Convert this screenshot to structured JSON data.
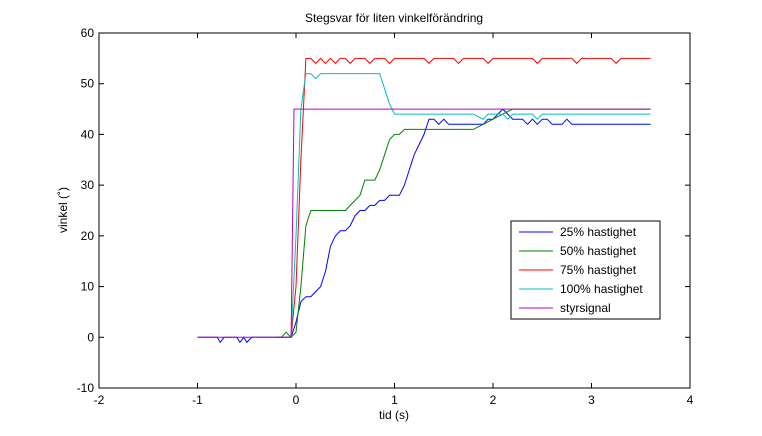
{
  "chart_data": {
    "type": "line",
    "title": "Stegsvar för liten vinkelförändring",
    "xlabel": "tid (s)",
    "ylabel": "vinkel (˚)",
    "xlim": [
      -2,
      4
    ],
    "ylim": [
      -10,
      60
    ],
    "xticks": [
      "-2",
      "-1",
      "0",
      "1",
      "2",
      "3",
      "4"
    ],
    "yticks": [
      "-10",
      "0",
      "10",
      "20",
      "30",
      "40",
      "50",
      "60"
    ],
    "grid": false,
    "legend_position": "lower-right",
    "series": [
      {
        "name": "25% hastighet",
        "color": "#0000ff",
        "points": [
          [
            -1.0,
            0
          ],
          [
            -0.8,
            0
          ],
          [
            -0.77,
            -1
          ],
          [
            -0.73,
            0
          ],
          [
            -0.6,
            0
          ],
          [
            -0.57,
            -1
          ],
          [
            -0.53,
            0
          ],
          [
            -0.5,
            -1
          ],
          [
            -0.45,
            0
          ],
          [
            -0.2,
            0
          ],
          [
            -0.05,
            0
          ],
          [
            0.0,
            3
          ],
          [
            0.05,
            7
          ],
          [
            0.1,
            8
          ],
          [
            0.15,
            8
          ],
          [
            0.2,
            9
          ],
          [
            0.25,
            10
          ],
          [
            0.3,
            13
          ],
          [
            0.35,
            18
          ],
          [
            0.4,
            20
          ],
          [
            0.45,
            21
          ],
          [
            0.5,
            21
          ],
          [
            0.55,
            22
          ],
          [
            0.6,
            24
          ],
          [
            0.65,
            25
          ],
          [
            0.7,
            25
          ],
          [
            0.75,
            26
          ],
          [
            0.8,
            26
          ],
          [
            0.85,
            27
          ],
          [
            0.9,
            27
          ],
          [
            0.95,
            28
          ],
          [
            1.05,
            28
          ],
          [
            1.1,
            30
          ],
          [
            1.15,
            33
          ],
          [
            1.2,
            36
          ],
          [
            1.25,
            38
          ],
          [
            1.3,
            40
          ],
          [
            1.35,
            43
          ],
          [
            1.4,
            43
          ],
          [
            1.45,
            42
          ],
          [
            1.5,
            43
          ],
          [
            1.55,
            42
          ],
          [
            1.9,
            42
          ],
          [
            1.95,
            43
          ],
          [
            2.0,
            43
          ],
          [
            2.05,
            44
          ],
          [
            2.1,
            45
          ],
          [
            2.15,
            44
          ],
          [
            2.2,
            43
          ],
          [
            2.3,
            43
          ],
          [
            2.35,
            42
          ],
          [
            2.4,
            43
          ],
          [
            2.45,
            42
          ],
          [
            2.5,
            43
          ],
          [
            2.55,
            43
          ],
          [
            2.6,
            42
          ],
          [
            2.7,
            42
          ],
          [
            2.75,
            43
          ],
          [
            2.8,
            42
          ],
          [
            3.0,
            42
          ],
          [
            3.6,
            42
          ]
        ]
      },
      {
        "name": "50% hastighet",
        "color": "#008000",
        "points": [
          [
            -0.2,
            0
          ],
          [
            -0.15,
            0
          ],
          [
            -0.1,
            1
          ],
          [
            -0.05,
            0
          ],
          [
            0.0,
            1
          ],
          [
            0.05,
            10
          ],
          [
            0.1,
            22
          ],
          [
            0.15,
            25
          ],
          [
            0.2,
            25
          ],
          [
            0.5,
            25
          ],
          [
            0.55,
            26
          ],
          [
            0.6,
            27
          ],
          [
            0.65,
            28
          ],
          [
            0.7,
            31
          ],
          [
            0.8,
            31
          ],
          [
            0.85,
            33
          ],
          [
            0.9,
            36
          ],
          [
            0.95,
            39
          ],
          [
            1.0,
            40
          ],
          [
            1.05,
            40
          ],
          [
            1.1,
            41
          ],
          [
            1.5,
            41
          ],
          [
            1.6,
            41
          ],
          [
            1.7,
            41
          ],
          [
            1.8,
            41
          ],
          [
            1.9,
            42
          ],
          [
            2.0,
            43
          ],
          [
            2.1,
            44
          ],
          [
            2.2,
            45
          ],
          [
            2.3,
            45
          ],
          [
            3.6,
            45
          ]
        ]
      },
      {
        "name": "75% hastighet",
        "color": "#ff0000",
        "points": [
          [
            -0.1,
            0
          ],
          [
            -0.05,
            0
          ],
          [
            0.0,
            10
          ],
          [
            0.05,
            35
          ],
          [
            0.1,
            55
          ],
          [
            0.15,
            55
          ],
          [
            0.2,
            54
          ],
          [
            0.25,
            55
          ],
          [
            0.3,
            54
          ],
          [
            0.35,
            55
          ],
          [
            0.4,
            54
          ],
          [
            0.45,
            55
          ],
          [
            0.5,
            55
          ],
          [
            0.55,
            54
          ],
          [
            0.6,
            55
          ],
          [
            0.7,
            55
          ],
          [
            0.75,
            54
          ],
          [
            0.8,
            55
          ],
          [
            0.9,
            55
          ],
          [
            0.95,
            54
          ],
          [
            1.0,
            55
          ],
          [
            1.3,
            55
          ],
          [
            1.35,
            54
          ],
          [
            1.4,
            55
          ],
          [
            1.6,
            55
          ],
          [
            1.65,
            54
          ],
          [
            1.7,
            55
          ],
          [
            1.9,
            55
          ],
          [
            1.95,
            54
          ],
          [
            2.0,
            55
          ],
          [
            2.4,
            55
          ],
          [
            2.45,
            54
          ],
          [
            2.5,
            55
          ],
          [
            2.8,
            55
          ],
          [
            2.85,
            54
          ],
          [
            2.9,
            55
          ],
          [
            3.2,
            55
          ],
          [
            3.25,
            54
          ],
          [
            3.3,
            55
          ],
          [
            3.6,
            55
          ]
        ]
      },
      {
        "name": "100% hastighet",
        "color": "#00c0c0",
        "points": [
          [
            -0.1,
            0
          ],
          [
            -0.05,
            0
          ],
          [
            0.0,
            20
          ],
          [
            0.05,
            45
          ],
          [
            0.1,
            52
          ],
          [
            0.15,
            52
          ],
          [
            0.2,
            51
          ],
          [
            0.25,
            52
          ],
          [
            0.3,
            52
          ],
          [
            0.5,
            52
          ],
          [
            0.7,
            52
          ],
          [
            0.85,
            52
          ],
          [
            0.9,
            49
          ],
          [
            0.95,
            46
          ],
          [
            1.0,
            44
          ],
          [
            1.1,
            44
          ],
          [
            1.5,
            44
          ],
          [
            1.8,
            44
          ],
          [
            1.9,
            43
          ],
          [
            1.95,
            44
          ],
          [
            2.1,
            44
          ],
          [
            2.15,
            43
          ],
          [
            2.2,
            44
          ],
          [
            2.4,
            44
          ],
          [
            2.45,
            43
          ],
          [
            2.5,
            44
          ],
          [
            2.7,
            44
          ],
          [
            3.0,
            44
          ],
          [
            3.6,
            44
          ]
        ]
      },
      {
        "name": "styrsignal",
        "color": "#bf00bf",
        "points": [
          [
            -1.0,
            0
          ],
          [
            -0.05,
            0
          ],
          [
            -0.02,
            45
          ],
          [
            0.0,
            45
          ],
          [
            3.6,
            45
          ]
        ]
      }
    ]
  }
}
